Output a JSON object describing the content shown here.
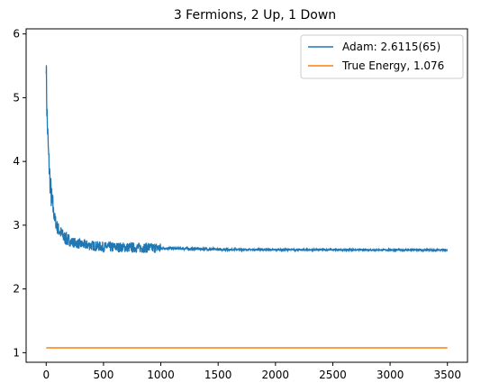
{
  "chart_data": {
    "type": "line",
    "title": "3 Fermions, 2 Up, 1 Down",
    "xlabel": "",
    "ylabel": "",
    "xlim": [
      -175,
      3675
    ],
    "ylim": [
      0.85,
      6.08
    ],
    "x_ticks": [
      0,
      500,
      1000,
      1500,
      2000,
      2500,
      3000,
      3500
    ],
    "y_ticks": [
      1,
      2,
      3,
      4,
      5,
      6
    ],
    "grid": false,
    "legend_position": "top-right",
    "series": [
      {
        "name": "Adam: 2.6115(65)",
        "color": "#1f77b4",
        "x_range": [
          0,
          3500
        ],
        "start_value": 5.6,
        "plateau_value": 2.61,
        "points": [
          [
            0,
            5.6
          ],
          [
            5,
            4.9
          ],
          [
            10,
            4.6
          ],
          [
            20,
            4.1
          ],
          [
            30,
            3.8
          ],
          [
            40,
            3.55
          ],
          [
            50,
            3.35
          ],
          [
            75,
            3.1
          ],
          [
            100,
            2.95
          ],
          [
            150,
            2.82
          ],
          [
            200,
            2.75
          ],
          [
            300,
            2.7
          ],
          [
            500,
            2.66
          ],
          [
            1000,
            2.64
          ],
          [
            1500,
            2.62
          ],
          [
            2000,
            2.615
          ],
          [
            3500,
            2.61
          ]
        ],
        "noise_note_start_band": 0.15
      },
      {
        "name": "True Energy, 1.076",
        "color": "#ff7f0e",
        "points": [
          [
            0,
            1.076
          ],
          [
            3500,
            1.076
          ]
        ]
      }
    ]
  }
}
